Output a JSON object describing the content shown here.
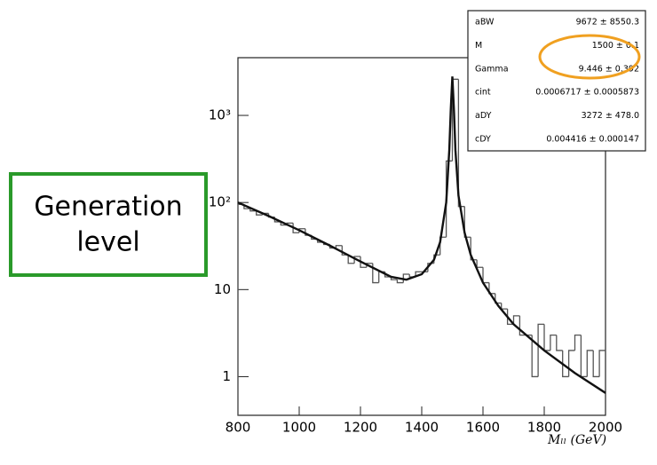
{
  "chart_data": {
    "type": "histogram",
    "xlabel": "Mₗₗ (GeV)",
    "bins": [
      800,
      820,
      840,
      860,
      880,
      900,
      920,
      940,
      960,
      980,
      1000,
      1020,
      1040,
      1060,
      1080,
      1100,
      1120,
      1140,
      1160,
      1180,
      1200,
      1220,
      1240,
      1260,
      1280,
      1300,
      1320,
      1340,
      1360,
      1380,
      1400,
      1420,
      1440,
      1460,
      1480,
      1500,
      1520,
      1540,
      1560,
      1580,
      1600,
      1620,
      1640,
      1660,
      1680,
      1700,
      1720,
      1740,
      1760,
      1780,
      1800,
      1820,
      1840,
      1860,
      1880,
      1900,
      1920,
      1940,
      1960,
      1980,
      2000
    ],
    "counts": [
      95,
      85,
      80,
      72,
      75,
      68,
      60,
      55,
      58,
      45,
      50,
      42,
      38,
      35,
      33,
      30,
      32,
      25,
      20,
      24,
      18,
      20,
      12,
      16,
      14,
      13,
      12,
      15,
      14,
      16,
      16,
      20,
      25,
      40,
      300,
      2600,
      90,
      40,
      22,
      18,
      12,
      9,
      7,
      6,
      4,
      5,
      3,
      3,
      1,
      4,
      2,
      3,
      2,
      1,
      2,
      3,
      1,
      2,
      1,
      2
    ],
    "color": "#555555",
    "fit": {
      "x": [
        800,
        900,
        1000,
        1100,
        1200,
        1300,
        1350,
        1400,
        1440,
        1460,
        1480,
        1490,
        1495,
        1500,
        1505,
        1510,
        1520,
        1540,
        1560,
        1600,
        1650,
        1700,
        1800,
        1900,
        2000
      ],
      "values": [
        100,
        70,
        48,
        32,
        21,
        14,
        13,
        15,
        22,
        35,
        100,
        400,
        1200,
        2800,
        1200,
        400,
        120,
        45,
        25,
        12,
        6.5,
        4,
        2,
        1.1,
        0.65
      ],
      "color": "#111111"
    },
    "log_y": true,
    "xlim": [
      800,
      2000
    ],
    "ylim": [
      0.36,
      4600
    ],
    "xticks": [
      800,
      1000,
      1200,
      1400,
      1600,
      1800,
      2000
    ],
    "yticks": [
      1,
      10,
      {
        "value": 100,
        "label": "10²"
      },
      {
        "value": 1000,
        "label": "10³"
      }
    ],
    "stats": [
      {
        "name": "aBW",
        "value": "9672 ± 8550.3"
      },
      {
        "name": "M",
        "value": "1500 ± 0.1"
      },
      {
        "name": "Gamma",
        "value": "9.446 ± 0.392"
      },
      {
        "name": "cint",
        "value": "0.0006717 ± 0.0005873"
      },
      {
        "name": "aDY",
        "value": "3272 ± 478.0"
      },
      {
        "name": "cDY",
        "value": "0.004416 ± 0.000147"
      }
    ],
    "annotation": [
      "Generation",
      "level"
    ]
  }
}
